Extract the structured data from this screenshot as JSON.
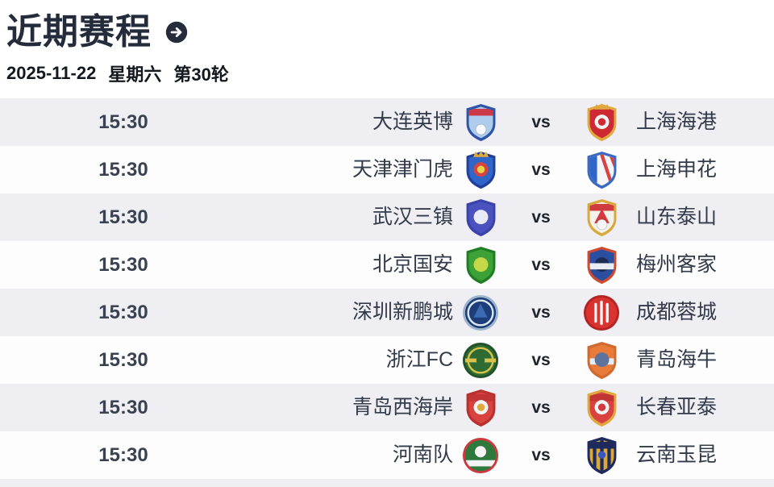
{
  "header": {
    "title": "近期赛程",
    "arrow_icon": "arrow-right-circle"
  },
  "matchday": {
    "date": "2025-11-22",
    "weekday": "星期六",
    "round": "第30轮"
  },
  "vs_label": "vs",
  "colors": {
    "title": "#242b3a",
    "date": "#14181f",
    "time": "#3a4151",
    "team": "#333a4a",
    "vs": "#20242c",
    "stripe": "#efeff3",
    "row_white": "#fdfdfd",
    "arrow_bg": "#262c3c",
    "arrow_fg": "#ffffff"
  },
  "matches": [
    {
      "time": "15:30",
      "home": {
        "name": "大连英博",
        "badge": {
          "shape": "shield",
          "border": "#2d54a7",
          "body": "#aecdee",
          "layers": [
            [
              "band",
              "#cc3a4a"
            ],
            [
              "ball",
              "#f6f8fb"
            ]
          ]
        }
      },
      "away": {
        "name": "上海海港",
        "badge": {
          "shape": "shield",
          "border": "#dfa93e",
          "body": "#cd2a33",
          "layers": [
            [
              "center",
              "#f3f3f3"
            ],
            [
              "dot",
              "#cd2a33"
            ],
            [
              "crown",
              "#dfa93e"
            ]
          ]
        }
      }
    },
    {
      "time": "15:30",
      "home": {
        "name": "天津津门虎",
        "badge": {
          "shape": "shield",
          "border": "#20409b",
          "body": "#2f66c8",
          "layers": [
            [
              "center",
              "#d8433f"
            ],
            [
              "dot",
              "#ead04b"
            ],
            [
              "crown",
              "#dfa93e"
            ]
          ]
        }
      },
      "away": {
        "name": "上海申花",
        "badge": {
          "shape": "shield",
          "border": "#3a6ac2",
          "body": "#f3f5f9",
          "layers": [
            [
              "leftpatch",
              "#2f66c8"
            ],
            [
              "stripes",
              "#d8433f"
            ]
          ]
        }
      }
    },
    {
      "time": "15:30",
      "home": {
        "name": "武汉三镇",
        "badge": {
          "shape": "shield",
          "border": "#3b43ab",
          "body": "#4a52c0",
          "layers": [
            [
              "center",
              "#e8eaf6"
            ]
          ]
        }
      },
      "away": {
        "name": "山东泰山",
        "badge": {
          "shape": "shield",
          "border": "#d9a93c",
          "body": "#f5f2ea",
          "layers": [
            [
              "band",
              "#cf3b3f"
            ],
            [
              "tri",
              "#cf3b3f"
            ],
            [
              "ball",
              "#f6f6f6"
            ]
          ]
        }
      }
    },
    {
      "time": "15:30",
      "home": {
        "name": "北京国安",
        "badge": {
          "shape": "shield",
          "border": "#1f7d24",
          "body": "#3ca238",
          "layers": [
            [
              "center",
              "#c6d848"
            ]
          ]
        }
      },
      "away": {
        "name": "梅州客家",
        "badge": {
          "shape": "shield",
          "border": "#cf4a33",
          "body": "#2b4fa0",
          "layers": [
            [
              "center",
              "#1d2c52"
            ],
            [
              "midband",
              "#e9ecf2"
            ]
          ]
        }
      }
    },
    {
      "time": "15:30",
      "home": {
        "name": "深圳新鹏城",
        "badge": {
          "shape": "circle",
          "border": "#9fb4cc",
          "body": "#1c3f7a",
          "layers": [
            [
              "oring",
              "#dfe8f2"
            ],
            [
              "tri",
              "#3c6ab0"
            ]
          ]
        }
      },
      "away": {
        "name": "成都蓉城",
        "badge": {
          "shape": "circle",
          "border": "#b32424",
          "body": "#d8332e",
          "layers": [
            [
              "vlines",
              "#f5f5f5"
            ]
          ]
        }
      }
    },
    {
      "time": "15:30",
      "home": {
        "name": "浙江FC",
        "badge": {
          "shape": "circle",
          "border": "#22512a",
          "body": "#2e6b33",
          "layers": [
            [
              "oring",
              "#d9c24b"
            ],
            [
              "midband",
              "#d9c24b"
            ],
            [
              "dot",
              "#2e6b33"
            ]
          ]
        }
      },
      "away": {
        "name": "青岛海牛",
        "badge": {
          "shape": "shield",
          "border": "#d06a2e",
          "body": "#e87b3a",
          "layers": [
            [
              "midband",
              "#e9ecf2"
            ],
            [
              "center",
              "#5e739b"
            ]
          ]
        }
      }
    },
    {
      "time": "15:30",
      "home": {
        "name": "青岛西海岸",
        "badge": {
          "shape": "shield",
          "border": "#b83030",
          "body": "#d8433f",
          "layers": [
            [
              "band",
              "#c23535"
            ],
            [
              "center",
              "#f4f4f4"
            ],
            [
              "dot",
              "#e0a840"
            ]
          ]
        }
      },
      "away": {
        "name": "长春亚泰",
        "badge": {
          "shape": "shield",
          "border": "#dfa93e",
          "body": "#d8433f",
          "layers": [
            [
              "band",
              "#c23535"
            ],
            [
              "center",
              "#f4f4f4"
            ],
            [
              "dot",
              "#cf3b3f"
            ]
          ]
        }
      }
    },
    {
      "time": "15:30",
      "home": {
        "name": "河南队",
        "badge": {
          "shape": "circle",
          "border": "#cc3a3f",
          "body": "#2e7a3c",
          "layers": [
            [
              "ball",
              "#f4f4f4"
            ],
            [
              "bband",
              "#f4f4f4"
            ]
          ]
        }
      },
      "away": {
        "name": "云南玉昆",
        "badge": {
          "shape": "shield",
          "border": "#1e2a5e",
          "body": "#d9a93c",
          "layers": [
            [
              "vstripes",
              "#1e2a5e"
            ],
            [
              "band",
              "#1e2a5e"
            ],
            [
              "dot",
              "#3a57c0"
            ]
          ]
        }
      }
    }
  ]
}
